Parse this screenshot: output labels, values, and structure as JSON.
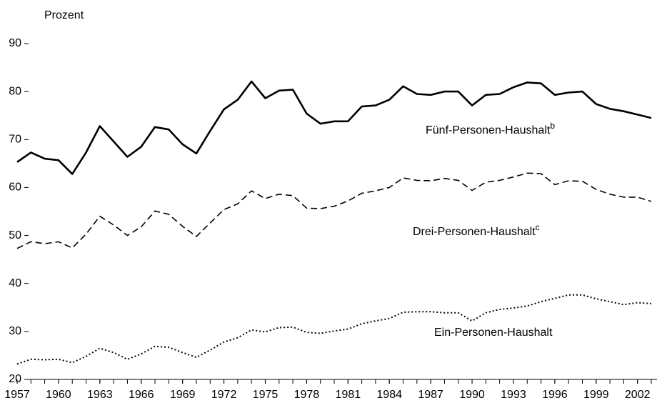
{
  "chart_data": {
    "type": "line",
    "y_label": "Prozent",
    "x": [
      1957,
      1958,
      1959,
      1960,
      1961,
      1962,
      1963,
      1964,
      1965,
      1966,
      1967,
      1968,
      1969,
      1970,
      1971,
      1972,
      1973,
      1974,
      1975,
      1976,
      1977,
      1978,
      1979,
      1980,
      1981,
      1982,
      1983,
      1984,
      1985,
      1986,
      1987,
      1988,
      1989,
      1990,
      1991,
      1992,
      1993,
      1994,
      1995,
      1996,
      1997,
      1998,
      1999,
      2000,
      2001,
      2002,
      2003
    ],
    "xlim": [
      1957,
      2003
    ],
    "xticks": [
      1957,
      1960,
      1963,
      1966,
      1969,
      1972,
      1975,
      1978,
      1981,
      1984,
      1987,
      1990,
      1993,
      1996,
      1999,
      2002
    ],
    "ylim": [
      20,
      90
    ],
    "yticks": [
      20,
      30,
      40,
      50,
      60,
      70,
      80,
      90
    ],
    "grid": false,
    "series": [
      {
        "name": "Fünf-Personen-Haushalt",
        "footnote": "b",
        "color": "#000000",
        "style": "solid",
        "values": [
          65.3,
          67.3,
          66.0,
          65.7,
          62.8,
          67.3,
          72.8,
          69.6,
          66.4,
          68.5,
          72.6,
          72.1,
          69.0,
          67.1,
          71.8,
          76.3,
          78.3,
          82.1,
          78.6,
          80.2,
          80.4,
          75.4,
          73.3,
          73.8,
          73.8,
          76.9,
          77.1,
          78.3,
          81.1,
          79.5,
          79.3,
          80.0,
          80.0,
          77.1,
          79.3,
          79.5,
          80.9,
          81.9,
          81.7,
          79.3,
          79.8,
          80.0,
          77.4,
          76.4,
          75.9,
          75.2,
          74.5
        ]
      },
      {
        "name": "Drei-Personen-Haushalt",
        "footnote": "c",
        "color": "#000000",
        "style": "dashed",
        "values": [
          47.3,
          48.7,
          48.3,
          48.7,
          47.4,
          50.3,
          54.0,
          52.2,
          50.0,
          51.8,
          55.1,
          54.4,
          51.9,
          49.8,
          52.6,
          55.4,
          56.6,
          59.3,
          57.7,
          58.6,
          58.3,
          55.7,
          55.6,
          56.1,
          57.2,
          58.8,
          59.3,
          60.0,
          62.0,
          61.5,
          61.4,
          61.9,
          61.5,
          59.4,
          61.1,
          61.5,
          62.2,
          63.0,
          62.9,
          60.6,
          61.4,
          61.3,
          59.6,
          58.6,
          58.0,
          58.0,
          57.1
        ]
      },
      {
        "name": "Ein-Personen-Haushalt",
        "color": "#000000",
        "style": "dotted",
        "values": [
          23.2,
          24.2,
          24.1,
          24.2,
          23.5,
          24.8,
          26.5,
          25.6,
          24.2,
          25.3,
          26.9,
          26.7,
          25.6,
          24.6,
          26.1,
          27.8,
          28.7,
          30.3,
          29.9,
          30.8,
          30.9,
          29.8,
          29.6,
          30.1,
          30.5,
          31.6,
          32.2,
          32.7,
          34.0,
          34.1,
          34.1,
          33.9,
          33.9,
          32.2,
          33.9,
          34.6,
          34.9,
          35.3,
          36.2,
          36.9,
          37.6,
          37.6,
          36.8,
          36.2,
          35.6,
          36.0,
          35.8
        ]
      }
    ]
  }
}
